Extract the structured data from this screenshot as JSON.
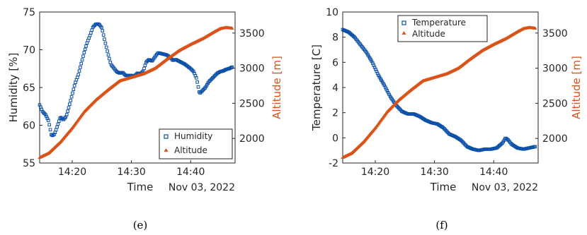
{
  "figure": {
    "captions": [
      "(e)",
      "(f)"
    ]
  },
  "colors": {
    "blue": "#0a4fa8",
    "orange": "#d95319",
    "axis": "#262626"
  },
  "chart_data": [
    {
      "type": "line",
      "title": "",
      "xlabel": "Time",
      "date_label": "Nov 03, 2022",
      "x_ticks": [
        "14:20",
        "14:30",
        "14:40"
      ],
      "x_tick_minutes": [
        20,
        30,
        40
      ],
      "xlim": [
        "14:14.5",
        "14:47.5"
      ],
      "xlim_minutes": [
        14.5,
        47.5
      ],
      "ylabel_left": "Humidity [%]",
      "ylim_left": [
        55,
        75
      ],
      "yticks_left": [
        55,
        60,
        65,
        70,
        75
      ],
      "ylabel_right": "Altitude [m]",
      "ylim_right": [
        1650,
        3800
      ],
      "yticks_right": [
        2000,
        2500,
        3000,
        3500
      ],
      "legend_position": "bottom-right",
      "grid": false,
      "series": [
        {
          "name": "Humidity",
          "axis": "left",
          "marker": "square",
          "color": "#0a4fa8",
          "x_minutes": [
            14.5,
            15.0,
            15.5,
            16.0,
            16.5,
            17.0,
            17.5,
            18.0,
            18.5,
            19.0,
            19.5,
            20.0,
            20.5,
            21.0,
            21.5,
            22.0,
            22.5,
            23.0,
            23.5,
            24.0,
            24.5,
            25.0,
            25.5,
            26.0,
            26.5,
            27.0,
            27.5,
            28.0,
            28.5,
            29.0,
            29.5,
            30.0,
            30.5,
            31.0,
            31.5,
            32.0,
            32.5,
            33.0,
            33.5,
            34.0,
            34.5,
            35.0,
            35.5,
            36.0,
            36.5,
            37.0,
            37.5,
            38.0,
            38.5,
            39.0,
            39.5,
            40.0,
            40.5,
            41.0,
            41.5,
            42.0,
            42.5,
            43.0,
            43.5,
            44.0,
            44.5,
            45.0,
            45.5,
            46.0,
            46.5,
            47.0
          ],
          "values": [
            62.7,
            61.8,
            61.4,
            60.6,
            58.6,
            58.8,
            59.9,
            61.1,
            60.7,
            61.2,
            62.6,
            64.1,
            65.6,
            66.6,
            68.1,
            69.6,
            70.9,
            71.9,
            73.0,
            73.4,
            73.4,
            72.9,
            71.2,
            69.6,
            68.1,
            67.6,
            67.1,
            66.9,
            67.0,
            66.6,
            66.6,
            66.6,
            66.5,
            66.9,
            66.8,
            67.2,
            68.4,
            68.7,
            68.5,
            69.1,
            69.6,
            69.5,
            69.4,
            69.3,
            69.0,
            68.6,
            68.7,
            68.5,
            68.3,
            68.1,
            67.8,
            67.5,
            67.1,
            66.2,
            64.2,
            64.6,
            65.0,
            65.7,
            66.1,
            66.5,
            66.9,
            67.1,
            67.2,
            67.4,
            67.5,
            67.7
          ]
        },
        {
          "name": "Altitude",
          "axis": "right",
          "marker": "triangle",
          "color": "#d95319",
          "x_minutes": [
            14.5,
            16.0,
            18.0,
            20.0,
            22.0,
            24.0,
            26.0,
            28.0,
            30.0,
            32.0,
            34.0,
            36.0,
            38.0,
            40.0,
            42.0,
            44.0,
            45.0,
            46.0,
            47.0
          ],
          "values": [
            1730,
            1790,
            1950,
            2150,
            2380,
            2550,
            2690,
            2820,
            2870,
            2920,
            3000,
            3130,
            3250,
            3340,
            3420,
            3520,
            3565,
            3580,
            3570
          ]
        }
      ]
    },
    {
      "type": "line",
      "title": "",
      "xlabel": "Time",
      "date_label": "Nov 03, 2022",
      "x_ticks": [
        "14:20",
        "14:30",
        "14:40"
      ],
      "x_tick_minutes": [
        20,
        30,
        40
      ],
      "xlim": [
        "14:14.5",
        "14:47.5"
      ],
      "xlim_minutes": [
        14.5,
        47.5
      ],
      "ylabel_left": "Temperature [C]",
      "ylim_left": [
        -2,
        10
      ],
      "yticks_left": [
        -2,
        0,
        2,
        4,
        6,
        8,
        10
      ],
      "ylabel_right": "Altitude [m]",
      "ylim_right": [
        1650,
        3800
      ],
      "yticks_right": [
        2000,
        2500,
        3000,
        3500
      ],
      "legend_position": "top-center",
      "grid": false,
      "series": [
        {
          "name": "Temperature",
          "axis": "left",
          "marker": "square",
          "color": "#0a4fa8",
          "x_minutes": [
            14.5,
            15.5,
            16.5,
            17.5,
            18.5,
            19.5,
            20.5,
            21.5,
            22.5,
            23.5,
            24.5,
            25.5,
            26.5,
            27.5,
            28.5,
            29.5,
            30.5,
            31.5,
            32.5,
            33.5,
            34.5,
            35.5,
            36.5,
            37.5,
            38.5,
            39.5,
            40.5,
            41.5,
            42.0,
            42.5,
            43.0,
            44.0,
            45.0,
            46.0,
            47.0
          ],
          "values": [
            8.6,
            8.4,
            8.0,
            7.4,
            6.8,
            6.0,
            5.0,
            4.2,
            3.3,
            2.6,
            2.1,
            1.9,
            1.9,
            1.7,
            1.4,
            1.2,
            1.1,
            0.8,
            0.3,
            0.1,
            -0.2,
            -0.7,
            -0.9,
            -1.0,
            -0.9,
            -0.9,
            -0.8,
            -0.4,
            0.0,
            -0.2,
            -0.5,
            -0.8,
            -0.9,
            -0.8,
            -0.7
          ]
        },
        {
          "name": "Altitude",
          "axis": "right",
          "marker": "triangle",
          "color": "#d95319",
          "x_minutes": [
            14.5,
            16.0,
            18.0,
            20.0,
            22.0,
            24.0,
            26.0,
            28.0,
            30.0,
            32.0,
            34.0,
            36.0,
            38.0,
            40.0,
            42.0,
            44.0,
            45.0,
            46.0,
            47.0
          ],
          "values": [
            1730,
            1790,
            1950,
            2150,
            2380,
            2550,
            2690,
            2820,
            2870,
            2920,
            3000,
            3130,
            3250,
            3340,
            3420,
            3520,
            3565,
            3580,
            3570
          ]
        }
      ]
    }
  ]
}
